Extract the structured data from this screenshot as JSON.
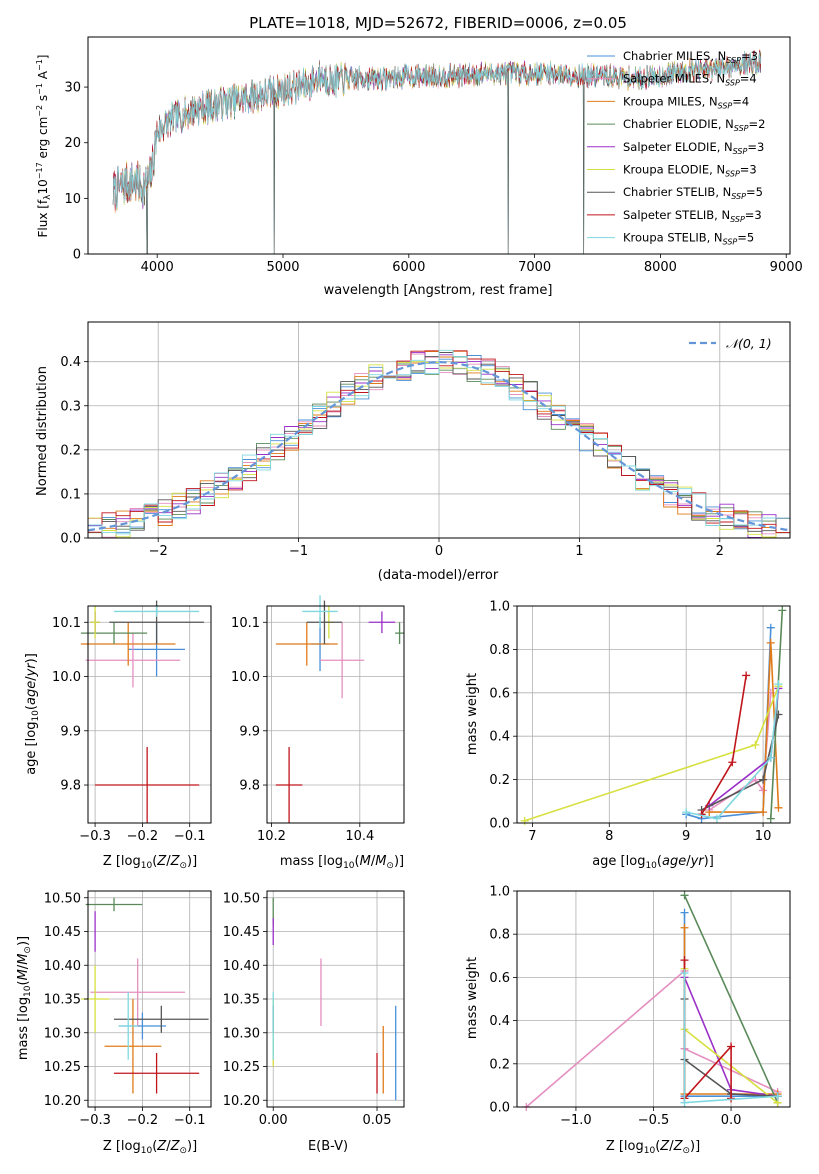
{
  "chart_data": [
    {
      "id": "spectrum",
      "type": "line",
      "title": "PLATE=1018, MJD=52672, FIBERID=0006, z=0.05",
      "xlabel": "wavelength [Angstrom, rest frame]",
      "ylabel": "Flux [fλ10⁻¹⁷ erg cm⁻² s⁻¹ A⁻¹]",
      "xlim": [
        3450,
        9030
      ],
      "ylim": [
        0,
        39
      ],
      "xticks": [
        4000,
        5000,
        6000,
        7000,
        8000,
        9000
      ],
      "yticks": [
        0,
        10,
        20,
        30
      ],
      "grid": false,
      "legend_position": "right",
      "spectrum_range": [
        3650,
        8800
      ],
      "continuum_x": [
        3650,
        3700,
        3800,
        3900,
        3950,
        4000,
        4100,
        4200,
        4300,
        4400,
        4500,
        4600,
        4700,
        4800,
        4900,
        5000,
        5100,
        5200,
        5300,
        5400,
        5500,
        5600,
        5800,
        6000,
        6200,
        6400,
        6600,
        6800,
        7000,
        7200,
        7400,
        7600,
        7800,
        8000,
        8200,
        8400,
        8600,
        8800
      ],
      "continuum_y": [
        11,
        12,
        13,
        12,
        14,
        22,
        24,
        25,
        26,
        26.5,
        27,
        27.5,
        28,
        28.5,
        29,
        29.5,
        30,
        30.5,
        32,
        31,
        31.5,
        31.5,
        31.5,
        32,
        32,
        32,
        32.5,
        32.5,
        32.5,
        32.5,
        32,
        32,
        31.5,
        32,
        33,
        33,
        34,
        34.5
      ],
      "dropouts": [
        {
          "x": 3920,
          "y": 0
        },
        {
          "x": 4930,
          "y": 0
        },
        {
          "x": 6790,
          "y": 0
        },
        {
          "x": 7390,
          "y": 0
        }
      ],
      "series": [
        {
          "name": "Chabrier MILES, N",
          "subscript": "SSP",
          "suffix": "=3",
          "color": "#4a90d9"
        },
        {
          "name": "Salpeter MILES, N",
          "subscript": "SSP",
          "suffix": "=4",
          "color": "#e58fc0"
        },
        {
          "name": "Kroupa MILES, N",
          "subscript": "SSP",
          "suffix": "=4",
          "color": "#e07b1a"
        },
        {
          "name": "Chabrier ELODIE, N",
          "subscript": "SSP",
          "suffix": "=2",
          "color": "#5a8a5a"
        },
        {
          "name": "Salpeter ELODIE, N",
          "subscript": "SSP",
          "suffix": "=3",
          "color": "#9b30c8"
        },
        {
          "name": "Kroupa ELODIE, N",
          "subscript": "SSP",
          "suffix": "=3",
          "color": "#d6e040"
        },
        {
          "name": "Chabrier STELIB, N",
          "subscript": "SSP",
          "suffix": "=5",
          "color": "#555555"
        },
        {
          "name": "Salpeter STELIB, N",
          "subscript": "SSP",
          "suffix": "=3",
          "color": "#c0151b"
        },
        {
          "name": "Kroupa STELIB, N",
          "subscript": "SSP",
          "suffix": "=5",
          "color": "#7fd8e0"
        }
      ]
    },
    {
      "id": "residuals",
      "type": "step-histogram",
      "xlabel": "(data-model)/error",
      "ylabel": "Normed distribution",
      "xlim": [
        -2.5,
        2.5
      ],
      "ylim": [
        0,
        0.49
      ],
      "xticks": [
        -2,
        -1,
        0,
        1,
        2
      ],
      "yticks": [
        0.0,
        0.1,
        0.2,
        0.3,
        0.4
      ],
      "grid": true,
      "bin_width": 0.1,
      "legend_position": "top-right",
      "reference": {
        "name": "𝒩(0, 1)",
        "mean": 0,
        "sigma": 1,
        "color": "#6495d8",
        "style": "dashed"
      }
    },
    {
      "id": "age-vs-Z",
      "type": "errorbar",
      "xlabel": "Z [log₁₀(Z/Z⊙)]",
      "ylabel": "age  [log₁₀(age/yr)]",
      "xlim": [
        -0.315,
        -0.055
      ],
      "ylim": [
        9.73,
        10.13
      ],
      "xticks": [
        -0.3,
        -0.2,
        -0.1
      ],
      "yticks": [
        9.8,
        9.9,
        10.0,
        10.1
      ],
      "grid": true,
      "points": [
        {
          "x": -0.17,
          "y": 10.05,
          "xerr": 0.06,
          "yerr": 0.05,
          "color": "#4a90d9"
        },
        {
          "x": -0.22,
          "y": 10.03,
          "xerr": 0.1,
          "yerr": 0.05,
          "color": "#e58fc0"
        },
        {
          "x": -0.23,
          "y": 10.06,
          "xerr": 0.1,
          "yerr": 0.04,
          "color": "#e07b1a"
        },
        {
          "x": -0.26,
          "y": 10.08,
          "xerr": 0.07,
          "yerr": 0.02,
          "color": "#5a8a5a"
        },
        {
          "x": -0.3,
          "y": 10.1,
          "xerr": 0.01,
          "yerr": 0.02,
          "color": "#9b30c8"
        },
        {
          "x": -0.3,
          "y": 10.1,
          "xerr": 0.01,
          "yerr": 0.03,
          "color": "#d6e040"
        },
        {
          "x": -0.17,
          "y": 10.1,
          "xerr": 0.1,
          "yerr": 0.04,
          "color": "#555555"
        },
        {
          "x": -0.19,
          "y": 9.8,
          "xerr": 0.11,
          "yerr": 0.07,
          "color": "#c0151b"
        },
        {
          "x": -0.17,
          "y": 10.12,
          "xerr": 0.09,
          "yerr": 0.01,
          "color": "#7fd8e0"
        }
      ]
    },
    {
      "id": "age-vs-mass",
      "type": "errorbar",
      "xlabel": "mass [log₁₀(M/M⊙)]",
      "ylabel": "",
      "xlim": [
        10.19,
        10.5
      ],
      "ylim": [
        9.73,
        10.13
      ],
      "xticks": [
        10.2,
        10.4
      ],
      "yticks": [
        9.8,
        9.9,
        10.0,
        10.1
      ],
      "grid": true,
      "points": [
        {
          "x": 10.31,
          "y": 10.06,
          "xerr": 0.02,
          "yerr": 0.05,
          "color": "#4a90d9"
        },
        {
          "x": 10.36,
          "y": 10.03,
          "xerr": 0.05,
          "yerr": 0.07,
          "color": "#e58fc0"
        },
        {
          "x": 10.28,
          "y": 10.06,
          "xerr": 0.07,
          "yerr": 0.04,
          "color": "#e07b1a"
        },
        {
          "x": 10.49,
          "y": 10.08,
          "xerr": 0.01,
          "yerr": 0.02,
          "color": "#5a8a5a"
        },
        {
          "x": 10.45,
          "y": 10.1,
          "xerr": 0.03,
          "yerr": 0.02,
          "color": "#9b30c8"
        },
        {
          "x": 10.33,
          "y": 10.1,
          "xerr": 0.01,
          "yerr": 0.03,
          "color": "#d6e040"
        },
        {
          "x": 10.32,
          "y": 10.1,
          "xerr": 0.04,
          "yerr": 0.04,
          "color": "#555555"
        },
        {
          "x": 10.24,
          "y": 9.8,
          "xerr": 0.03,
          "yerr": 0.07,
          "color": "#c0151b"
        },
        {
          "x": 10.31,
          "y": 10.12,
          "xerr": 0.04,
          "yerr": 0.03,
          "color": "#7fd8e0"
        }
      ]
    },
    {
      "id": "weight-vs-age",
      "type": "line",
      "xlabel": "age  [log₁₀(age/yr)]",
      "ylabel": "mass weight",
      "xlim": [
        6.8,
        10.35
      ],
      "ylim": [
        0,
        1
      ],
      "xticks": [
        7,
        8,
        9,
        10
      ],
      "yticks": [
        0.0,
        0.2,
        0.4,
        0.6,
        0.8,
        1.0
      ],
      "grid": true,
      "series": [
        {
          "color": "#4a90d9",
          "x": [
            9.0,
            9.2,
            10.0,
            10.1
          ],
          "y": [
            0.04,
            0.02,
            0.05,
            0.9
          ]
        },
        {
          "color": "#e58fc0",
          "x": [
            9.3,
            9.9,
            10.0,
            10.1
          ],
          "y": [
            0.06,
            0.2,
            0.15,
            0.6
          ]
        },
        {
          "color": "#e07b1a",
          "x": [
            9.3,
            10.0,
            10.1,
            10.2
          ],
          "y": [
            0.05,
            0.05,
            0.83,
            0.07
          ]
        },
        {
          "color": "#5a8a5a",
          "x": [
            10.1,
            10.25
          ],
          "y": [
            0.02,
            0.98
          ]
        },
        {
          "color": "#9b30c8",
          "x": [
            9.3,
            10.1,
            10.2
          ],
          "y": [
            0.08,
            0.3,
            0.62
          ]
        },
        {
          "color": "#d6e040",
          "x": [
            6.9,
            9.9,
            10.2
          ],
          "y": [
            0.01,
            0.36,
            0.63
          ]
        },
        {
          "color": "#555555",
          "x": [
            9.2,
            10.0,
            10.2
          ],
          "y": [
            0.06,
            0.2,
            0.5
          ]
        },
        {
          "color": "#c0151b",
          "x": [
            9.2,
            9.6,
            9.78
          ],
          "y": [
            0.04,
            0.28,
            0.68
          ]
        },
        {
          "color": "#7fd8e0",
          "x": [
            9.0,
            9.4,
            10.1,
            10.2
          ],
          "y": [
            0.05,
            0.02,
            0.3,
            0.64
          ]
        }
      ]
    },
    {
      "id": "mass-vs-Z",
      "type": "errorbar",
      "xlabel": "Z [log₁₀(Z/Z⊙)]",
      "ylabel": "mass [log₁₀(M/M⊙)]",
      "xlim": [
        -0.315,
        -0.055
      ],
      "ylim": [
        10.19,
        10.51
      ],
      "xticks": [
        -0.3,
        -0.2,
        -0.1
      ],
      "yticks": [
        10.2,
        10.25,
        10.3,
        10.35,
        10.4,
        10.45,
        10.5
      ],
      "grid": true,
      "points": [
        {
          "x": -0.2,
          "y": 10.31,
          "xerr": 0.05,
          "yerr": 0.02,
          "color": "#4a90d9"
        },
        {
          "x": -0.21,
          "y": 10.36,
          "xerr": 0.1,
          "yerr": 0.05,
          "color": "#e58fc0"
        },
        {
          "x": -0.22,
          "y": 10.28,
          "xerr": 0.06,
          "yerr": 0.07,
          "color": "#e07b1a"
        },
        {
          "x": -0.26,
          "y": 10.49,
          "xerr": 0.06,
          "yerr": 0.01,
          "color": "#5a8a5a"
        },
        {
          "x": -0.3,
          "y": 10.45,
          "xerr": 0.0,
          "yerr": 0.03,
          "color": "#9b30c8"
        },
        {
          "x": -0.3,
          "y": 10.35,
          "xerr": 0.03,
          "yerr": 0.05,
          "color": "#d6e040"
        },
        {
          "x": -0.16,
          "y": 10.32,
          "xerr": 0.1,
          "yerr": 0.02,
          "color": "#555555"
        },
        {
          "x": -0.17,
          "y": 10.24,
          "xerr": 0.09,
          "yerr": 0.03,
          "color": "#c0151b"
        },
        {
          "x": -0.23,
          "y": 10.31,
          "xerr": 0.02,
          "yerr": 0.05,
          "color": "#7fd8e0"
        }
      ]
    },
    {
      "id": "mass-vs-EBV",
      "type": "errorbar",
      "xlabel": "E(B-V)",
      "ylabel": "",
      "xlim": [
        -0.003,
        0.063
      ],
      "ylim": [
        10.19,
        10.51
      ],
      "xticks": [
        0.0,
        0.05
      ],
      "yticks": [
        10.2,
        10.25,
        10.3,
        10.35,
        10.4,
        10.45,
        10.5
      ],
      "grid": true,
      "points": [
        {
          "x": 0.059,
          "y": 10.27,
          "xerr": 0.0,
          "yerr": 0.07,
          "color": "#4a90d9"
        },
        {
          "x": 0.023,
          "y": 10.36,
          "xerr": 0.0,
          "yerr": 0.05,
          "color": "#e58fc0"
        },
        {
          "x": 0.053,
          "y": 10.26,
          "xerr": 0.0,
          "yerr": 0.05,
          "color": "#e07b1a"
        },
        {
          "x": 0.0,
          "y": 10.48,
          "xerr": 0.0,
          "yerr": 0.02,
          "color": "#5a8a5a"
        },
        {
          "x": 0.0,
          "y": 10.45,
          "xerr": 0.0,
          "yerr": 0.02,
          "color": "#9b30c8"
        },
        {
          "x": 0.0,
          "y": 10.3,
          "xerr": 0.0,
          "yerr": 0.05,
          "color": "#d6e040"
        },
        {
          "x": 0.0,
          "y": 10.32,
          "xerr": 0.0,
          "yerr": 0.02,
          "color": "#555555"
        },
        {
          "x": 0.05,
          "y": 10.24,
          "xerr": 0.0,
          "yerr": 0.03,
          "color": "#c0151b"
        },
        {
          "x": 0.0,
          "y": 10.31,
          "xerr": 0.0,
          "yerr": 0.05,
          "color": "#7fd8e0"
        }
      ]
    },
    {
      "id": "weight-vs-Z",
      "type": "line",
      "xlabel": "Z [log₁₀(Z/Z⊙)]",
      "ylabel": "mass weight",
      "xlim": [
        -1.38,
        0.38
      ],
      "ylim": [
        0,
        1
      ],
      "xticks": [
        -1.0,
        -0.5,
        0.0
      ],
      "yticks": [
        0.0,
        0.2,
        0.4,
        0.6,
        0.8,
        1.0
      ],
      "grid": true,
      "series": [
        {
          "color": "#4a90d9",
          "x": [
            -0.3,
            -0.3,
            0.0,
            0.3
          ],
          "y": [
            0.9,
            0.05,
            0.05,
            0.05
          ]
        },
        {
          "color": "#e58fc0",
          "x": [
            -1.32,
            -0.3,
            -0.3,
            0.3
          ],
          "y": [
            0.0,
            0.63,
            0.27,
            0.07
          ]
        },
        {
          "color": "#e07b1a",
          "x": [
            -0.3,
            -0.3,
            0.3
          ],
          "y": [
            0.83,
            0.06,
            0.06
          ]
        },
        {
          "color": "#5a8a5a",
          "x": [
            -0.3,
            0.3
          ],
          "y": [
            0.98,
            0.02
          ]
        },
        {
          "color": "#9b30c8",
          "x": [
            -0.3,
            0.0,
            0.3
          ],
          "y": [
            0.6,
            0.08,
            0.05
          ]
        },
        {
          "color": "#d6e040",
          "x": [
            -0.3,
            -0.3,
            0.3
          ],
          "y": [
            0.64,
            0.36,
            0.02
          ]
        },
        {
          "color": "#555555",
          "x": [
            -0.3,
            -0.3,
            0.0,
            0.3
          ],
          "y": [
            0.5,
            0.22,
            0.06,
            0.05
          ]
        },
        {
          "color": "#c0151b",
          "x": [
            -0.3,
            -0.3,
            0.0,
            0.0
          ],
          "y": [
            0.68,
            0.04,
            0.28,
            0.04
          ]
        },
        {
          "color": "#7fd8e0",
          "x": [
            -0.3,
            -0.3,
            0.3
          ],
          "y": [
            0.62,
            0.02,
            0.05
          ]
        }
      ]
    }
  ]
}
